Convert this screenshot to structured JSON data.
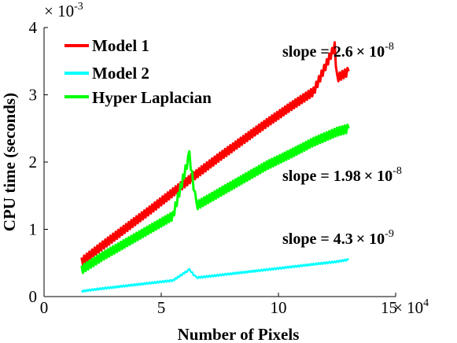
{
  "chart_data": {
    "type": "line",
    "xlabel": "Number of Pixels",
    "ylabel": "CPU time (seconds)",
    "x_multiplier": "× 10",
    "x_multiplier_exp": "4",
    "y_multiplier": "× 10",
    "y_multiplier_exp": "-3",
    "xlim": [
      0,
      15
    ],
    "ylim": [
      0,
      4
    ],
    "xticks": [
      "0",
      "5",
      "10",
      "15"
    ],
    "yticks": [
      "0",
      "1",
      "2",
      "3",
      "4"
    ],
    "grid": false,
    "legend_position": "top-left",
    "series": [
      {
        "name": "Model 1",
        "color": "#ff0000",
        "x": [
          1.6,
          2.5,
          3.5,
          4.5,
          5.5,
          6.5,
          7.5,
          8.5,
          9.5,
          10.5,
          11.5,
          12.4,
          12.5,
          13.0
        ],
        "y": [
          0.52,
          0.76,
          1.02,
          1.28,
          1.55,
          1.82,
          2.08,
          2.33,
          2.58,
          2.82,
          3.05,
          3.72,
          3.25,
          3.35
        ]
      },
      {
        "name": "Model 2",
        "color": "#00ffff",
        "x": [
          1.6,
          2.5,
          3.5,
          4.5,
          5.5,
          6.2,
          6.5,
          7.5,
          8.5,
          9.5,
          10.5,
          11.5,
          12.5,
          13.0
        ],
        "y": [
          0.08,
          0.12,
          0.16,
          0.2,
          0.24,
          0.4,
          0.28,
          0.32,
          0.36,
          0.4,
          0.44,
          0.48,
          0.52,
          0.55
        ]
      },
      {
        "name": "Hyper Laplacian",
        "color": "#00ff00",
        "x": [
          1.6,
          2.5,
          3.5,
          4.5,
          5.5,
          6.2,
          6.5,
          7.5,
          8.5,
          9.5,
          10.5,
          11.5,
          12.5,
          13.0
        ],
        "y": [
          0.4,
          0.6,
          0.8,
          1.0,
          1.2,
          2.1,
          1.35,
          1.55,
          1.75,
          1.95,
          2.12,
          2.3,
          2.45,
          2.5
        ]
      }
    ],
    "annotations": [
      {
        "text": "slope = 2.6",
        "mult": "× 10",
        "exp": "-8"
      },
      {
        "text": "slope = 1.98",
        "mult": "× 10",
        "exp": "-8"
      },
      {
        "text": "slope = 4.3",
        "mult": "× 10",
        "exp": "-9"
      }
    ]
  }
}
